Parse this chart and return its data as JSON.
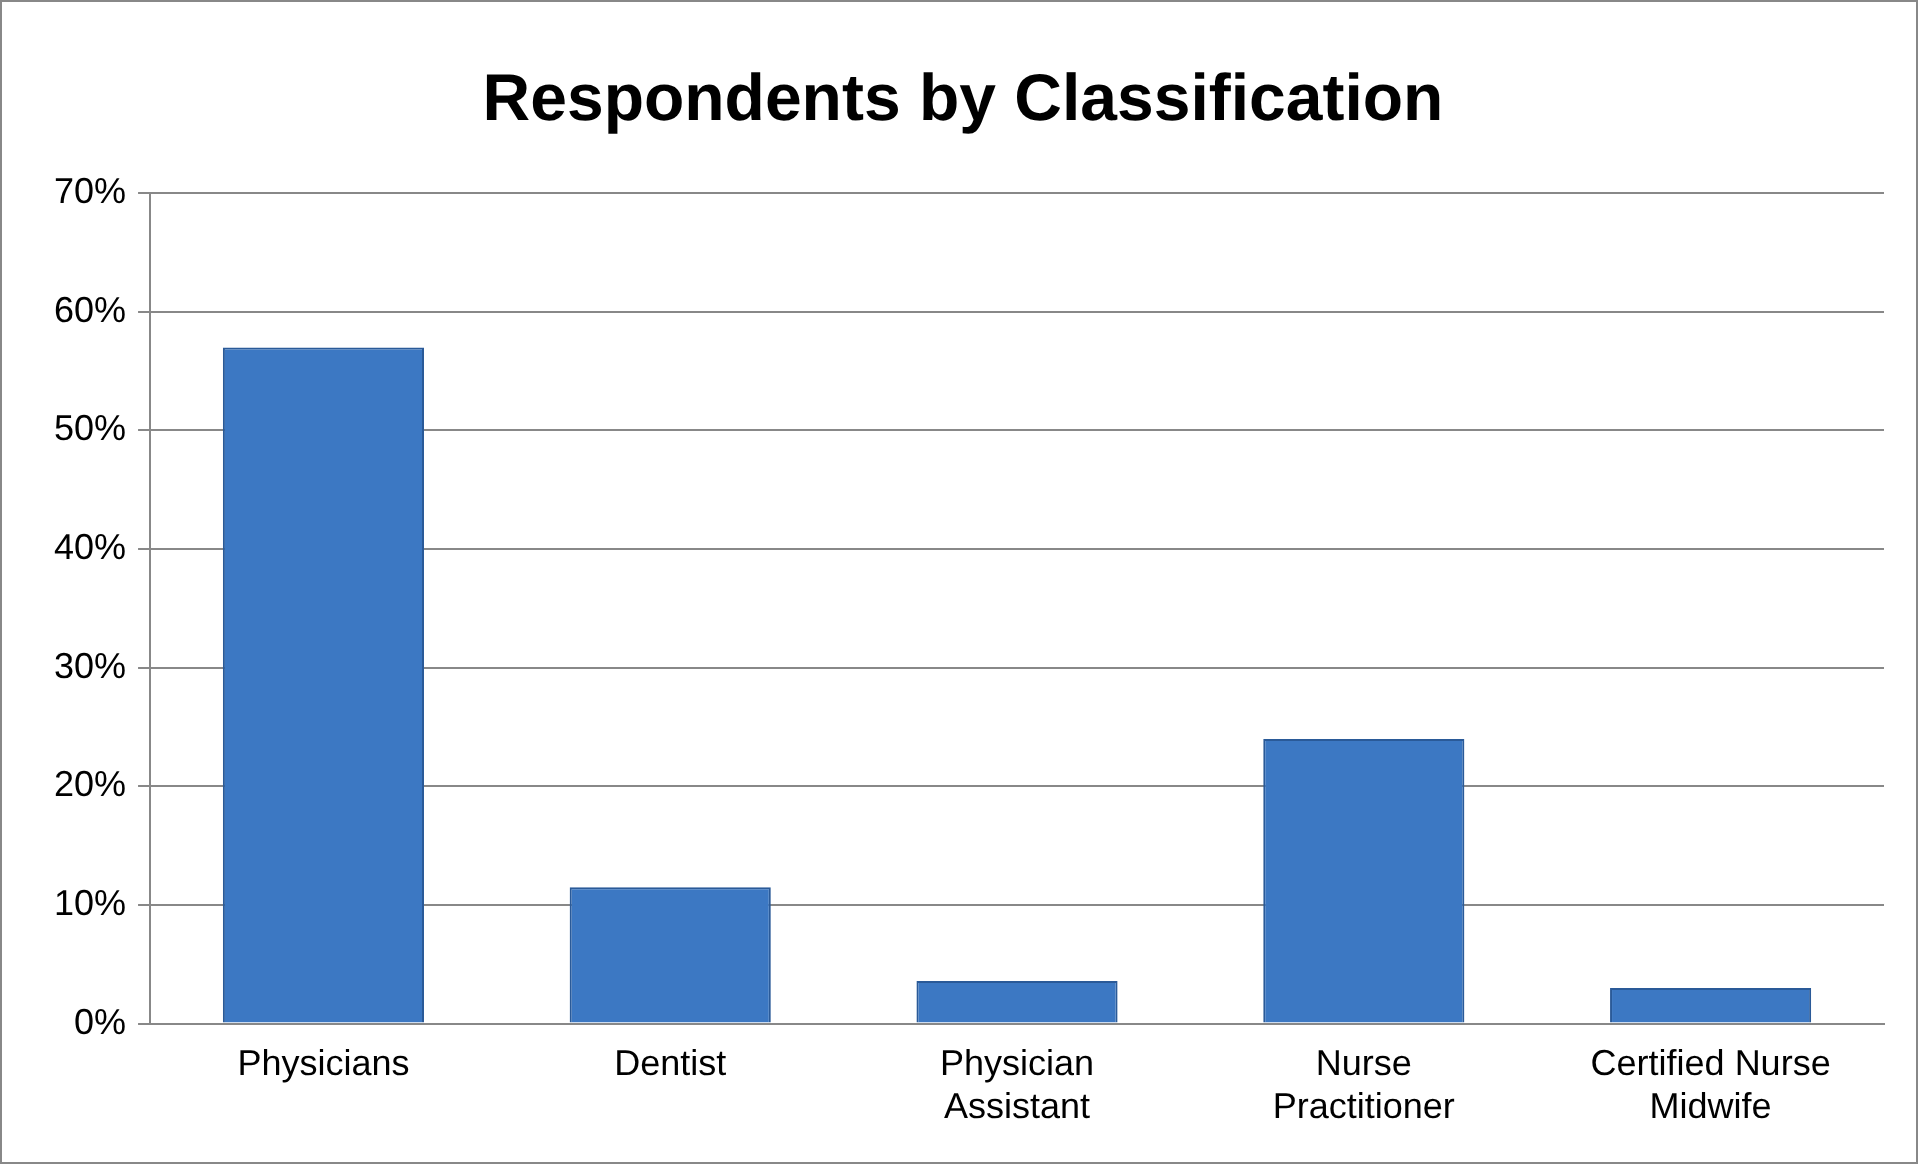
{
  "chart_data": {
    "type": "bar",
    "title": "Respondents by Classification",
    "categories": [
      "Physicians",
      "Dentist",
      "Physician Assistant",
      "Nurse Practitioner",
      "Certified Nurse Midwife"
    ],
    "values": [
      57,
      11.5,
      3.6,
      24,
      3
    ],
    "color": "#3c78c3",
    "ylim": [
      0,
      70
    ],
    "yticks": [
      {
        "value": 0,
        "label": "0%"
      },
      {
        "value": 10,
        "label": "10%"
      },
      {
        "value": 20,
        "label": "20%"
      },
      {
        "value": 30,
        "label": "30%"
      },
      {
        "value": 40,
        "label": "40%"
      },
      {
        "value": 50,
        "label": "50%"
      },
      {
        "value": 60,
        "label": "60%"
      },
      {
        "value": 70,
        "label": "70%"
      }
    ],
    "grid": "y"
  }
}
